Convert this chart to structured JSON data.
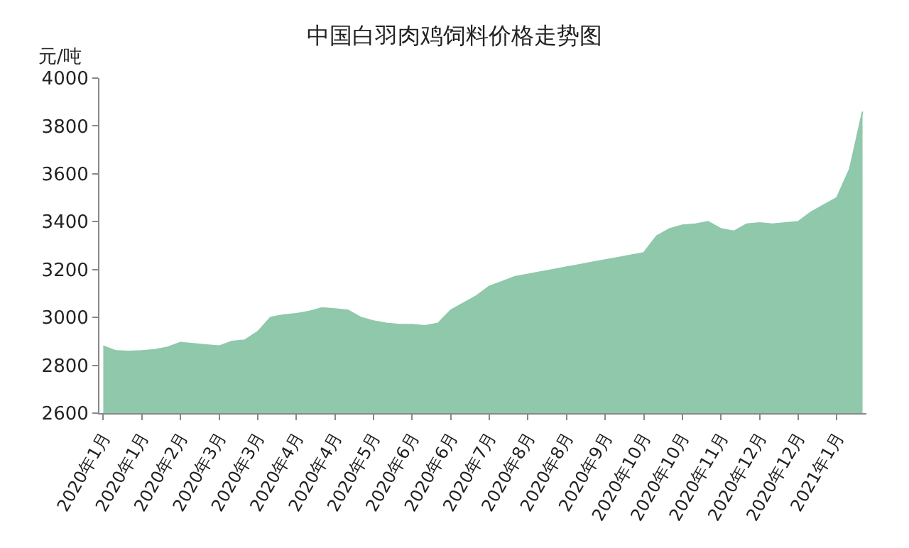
{
  "chart_data": {
    "type": "area",
    "title": "中国白羽肉鸡饲料价格走势图",
    "ylabel": "元/吨",
    "categories": [
      "2020年1月",
      null,
      null,
      "2020年1月",
      null,
      null,
      "2020年2月",
      null,
      null,
      "2020年3月",
      null,
      null,
      "2020年3月",
      null,
      null,
      "2020年4月",
      null,
      null,
      "2020年4月",
      null,
      null,
      "2020年5月",
      null,
      null,
      "2020年6月",
      null,
      null,
      "2020年6月",
      null,
      null,
      "2020年7月",
      null,
      null,
      "2020年8月",
      null,
      null,
      "2020年8月",
      null,
      null,
      "2020年9月",
      null,
      null,
      "2020年10月",
      null,
      null,
      "2020年10月",
      null,
      null,
      "2020年11月",
      null,
      null,
      "2020年12月",
      null,
      null,
      "2020年12月",
      null,
      null,
      "2021年1月",
      null,
      null
    ],
    "values": [
      2880,
      2860,
      2858,
      2860,
      2865,
      2875,
      2895,
      2890,
      2885,
      2880,
      2900,
      2905,
      2940,
      3000,
      3010,
      3015,
      3025,
      3040,
      3035,
      3030,
      3000,
      2985,
      2975,
      2970,
      2970,
      2965,
      2975,
      3030,
      3060,
      3090,
      3130,
      3150,
      3170,
      3180,
      3190,
      3200,
      3210,
      3220,
      3230,
      3240,
      3250,
      3260,
      3270,
      3340,
      3370,
      3385,
      3390,
      3400,
      3370,
      3360,
      3390,
      3395,
      3390,
      3395,
      3400,
      3440,
      3470,
      3500,
      3620,
      3860
    ],
    "color": "#8fc8ab",
    "ylim": [
      2600,
      4000
    ],
    "yticks": [
      2600,
      2800,
      3000,
      3200,
      3400,
      3600,
      3800,
      4000
    ],
    "legend": false
  }
}
